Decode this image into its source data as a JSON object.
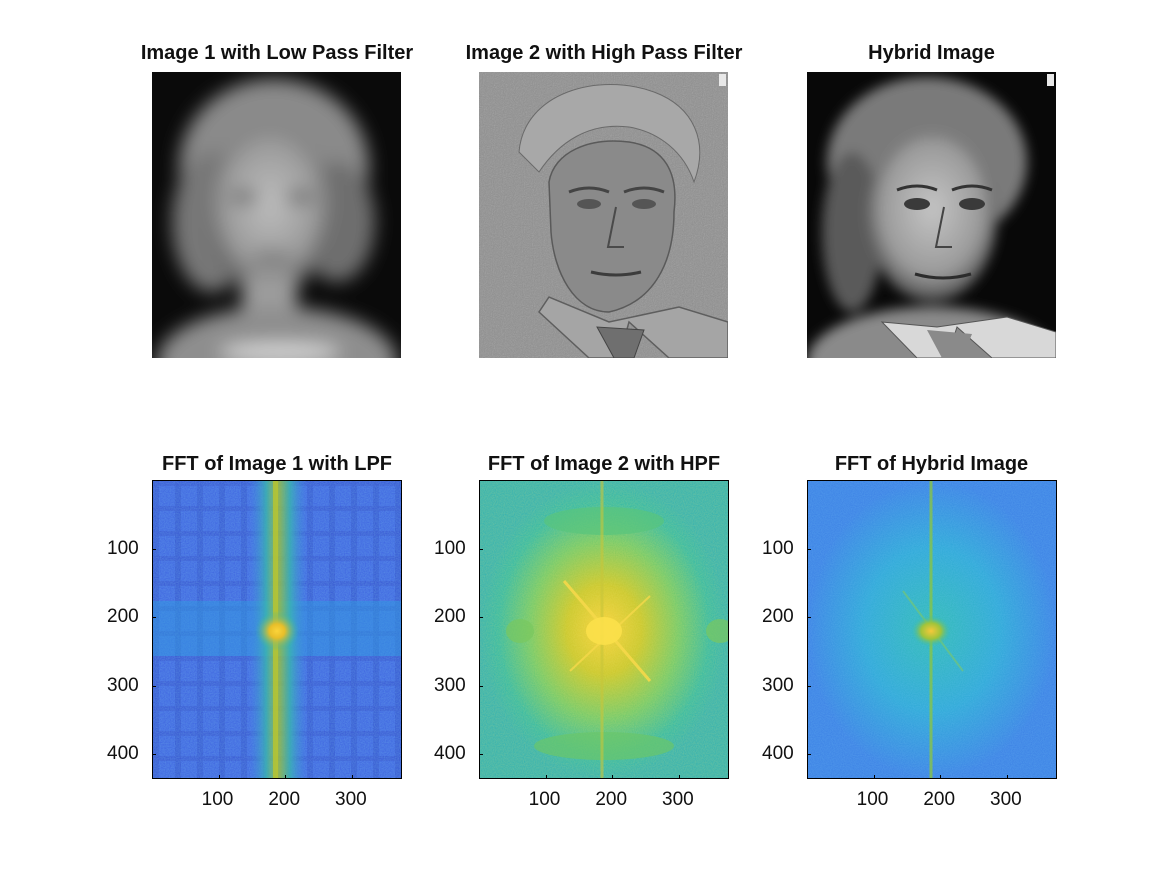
{
  "panels_top": [
    {
      "title": "Image 1 with Low Pass Filter",
      "image": "low-pass-filtered-portrait-photo"
    },
    {
      "title": "Image 2 with High Pass Filter",
      "image": "high-pass-filtered-portrait-photo"
    },
    {
      "title": "Hybrid Image",
      "image": "hybrid-portrait-photo"
    }
  ],
  "chart_data": [
    {
      "type": "heatmap",
      "title": "FFT of Image 1 with LPF",
      "xlabel": "",
      "ylabel": "",
      "xlim": [
        0,
        375
      ],
      "ylim": [
        0,
        436
      ],
      "xticks": [
        100,
        200,
        300
      ],
      "yticks": [
        100,
        200,
        300,
        400
      ],
      "colormap": "parula",
      "features": "dominant vertical band and bright center, grid of faint stripes"
    },
    {
      "type": "heatmap",
      "title": "FFT of Image 2 with HPF",
      "xlabel": "",
      "ylabel": "",
      "xlim": [
        0,
        375
      ],
      "ylim": [
        0,
        436
      ],
      "xticks": [
        100,
        200,
        300
      ],
      "yticks": [
        100,
        200,
        300,
        400
      ],
      "colormap": "parula",
      "features": "bright broad center with diagonal streaks"
    },
    {
      "type": "heatmap",
      "title": "FFT of Hybrid Image",
      "xlabel": "",
      "ylabel": "",
      "xlim": [
        0,
        375
      ],
      "ylim": [
        0,
        436
      ],
      "xticks": [
        100,
        200,
        300
      ],
      "yticks": [
        100,
        200,
        300,
        400
      ],
      "colormap": "parula",
      "features": "faint vertical line with small bright center"
    }
  ]
}
